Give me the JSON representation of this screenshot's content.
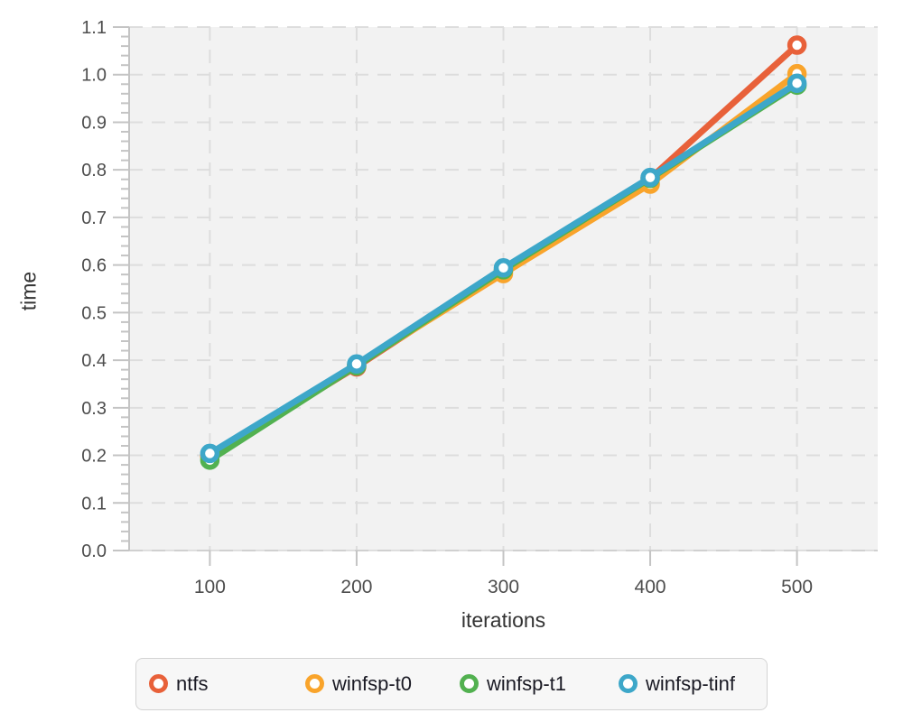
{
  "chart_data": {
    "type": "line",
    "title": "",
    "xlabel": "iterations",
    "ylabel": "time",
    "x": [
      100,
      200,
      300,
      400,
      500
    ],
    "x_tick_labels": [
      "100",
      "200",
      "300",
      "400",
      "500"
    ],
    "y_tick_labels": [
      "0.0",
      "0.1",
      "0.2",
      "0.3",
      "0.4",
      "0.5",
      "0.6",
      "0.7",
      "0.8",
      "0.9",
      "1.0",
      "1.1"
    ],
    "xlim": [
      45,
      555
    ],
    "ylim": [
      0,
      1.1
    ],
    "y_major_step": 0.1,
    "y_minor_step": 0.02,
    "grid": "dashed",
    "legend_position": "bottom",
    "marker": "open-circle",
    "series": [
      {
        "name": "ntfs",
        "color": "#e8613a",
        "values": [
          0.198,
          0.386,
          0.588,
          0.782,
          1.062
        ]
      },
      {
        "name": "winfsp-t0",
        "color": "#f9a42b",
        "values": [
          0.198,
          0.39,
          0.582,
          0.77,
          1.002
        ]
      },
      {
        "name": "winfsp-t1",
        "color": "#52b150",
        "values": [
          0.19,
          0.388,
          0.59,
          0.782,
          0.978
        ]
      },
      {
        "name": "winfsp-tinf",
        "color": "#3da7c9",
        "values": [
          0.204,
          0.392,
          0.594,
          0.784,
          0.982
        ]
      }
    ],
    "colors": {
      "plot_background": "#f2f2f2",
      "gridline": "#dddddd",
      "axis_spine": "#c4c4c4",
      "tick_label": "#4d4d4d",
      "axis_label": "#333333",
      "marker_fill": "#ffffff"
    }
  }
}
